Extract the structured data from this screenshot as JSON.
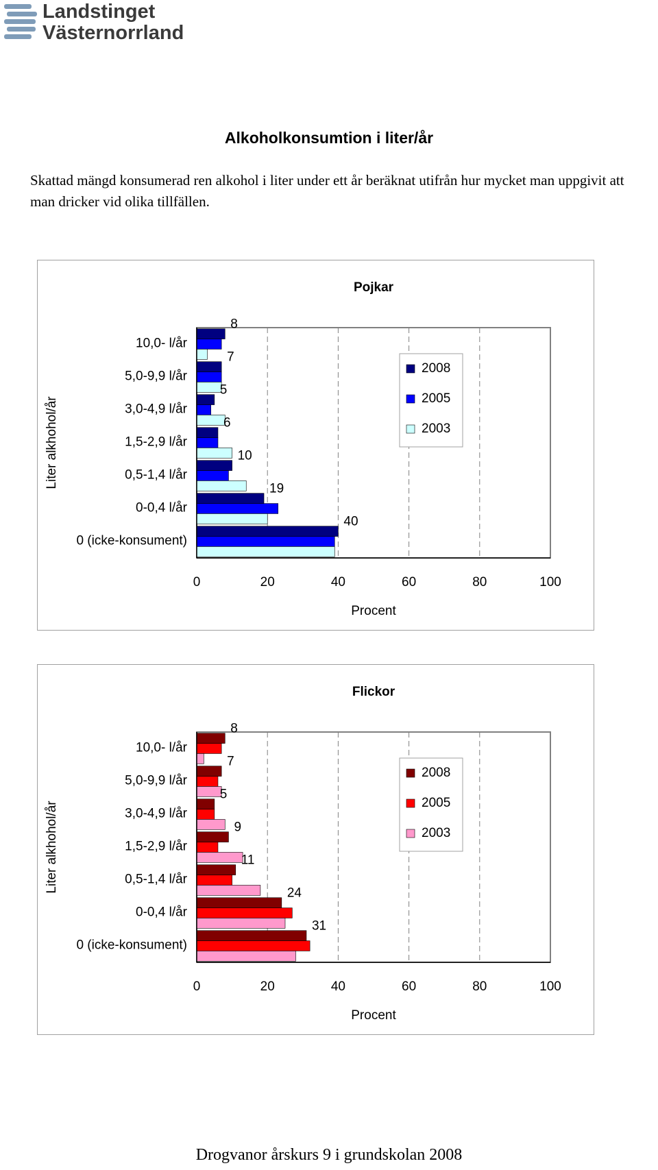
{
  "header": {
    "logo_line1": "Landstinget",
    "logo_line2": "Västernorrland"
  },
  "title": "Alkoholkonsumtion i liter/år",
  "paragraph": "Skattad mängd konsumerad ren alkohol i liter under ett år beräknat utifrån hur mycket man uppgivit att man dricker vid olika tillfällen.",
  "chart_data": [
    {
      "type": "bar",
      "orientation": "horizontal",
      "title": "Pojkar",
      "x_label": "Procent",
      "y_label": "Liter alkhohol/år",
      "categories": [
        "10,0- l/år",
        "5,0-9,9 l/år",
        "3,0-4,9 l/år",
        "1,5-2,9 l/år",
        "0,5-1,4 l/år",
        "0-0,4 l/år",
        "0 (icke-konsument)"
      ],
      "series": [
        {
          "name": "2008",
          "color": "#000080",
          "values": [
            8,
            7,
            5,
            6,
            10,
            19,
            40
          ],
          "show_labels": true
        },
        {
          "name": "2005",
          "color": "#0000ff",
          "values": [
            7,
            7,
            4,
            6,
            9,
            23,
            39
          ]
        },
        {
          "name": "2003",
          "color": "#ccffff",
          "values": [
            3,
            7,
            8,
            10,
            14,
            20,
            39
          ]
        }
      ],
      "xlim": [
        0,
        100
      ],
      "xticks": [
        0,
        20,
        40,
        60,
        80,
        100
      ],
      "grid": true,
      "legend": "right"
    },
    {
      "type": "bar",
      "orientation": "horizontal",
      "title": "Flickor",
      "x_label": "Procent",
      "y_label": "Liter alkhohol/år",
      "categories": [
        "10,0- l/år",
        "5,0-9,9 l/år",
        "3,0-4,9 l/år",
        "1,5-2,9 l/år",
        "0,5-1,4 l/år",
        "0-0,4 l/år",
        "0 (icke-konsument)"
      ],
      "series": [
        {
          "name": "2008",
          "color": "#800000",
          "values": [
            8,
            7,
            5,
            9,
            11,
            24,
            31
          ],
          "show_labels": true
        },
        {
          "name": "2005",
          "color": "#ff0000",
          "values": [
            7,
            6,
            5,
            6,
            10,
            27,
            32
          ]
        },
        {
          "name": "2003",
          "color": "#ff99cc",
          "values": [
            2,
            7,
            8,
            13,
            18,
            25,
            28
          ]
        }
      ],
      "xlim": [
        0,
        100
      ],
      "xticks": [
        0,
        20,
        40,
        60,
        80,
        100
      ],
      "grid": true,
      "legend": "right"
    }
  ],
  "footer": "Drogvanor årskurs 9 i grundskolan 2008"
}
